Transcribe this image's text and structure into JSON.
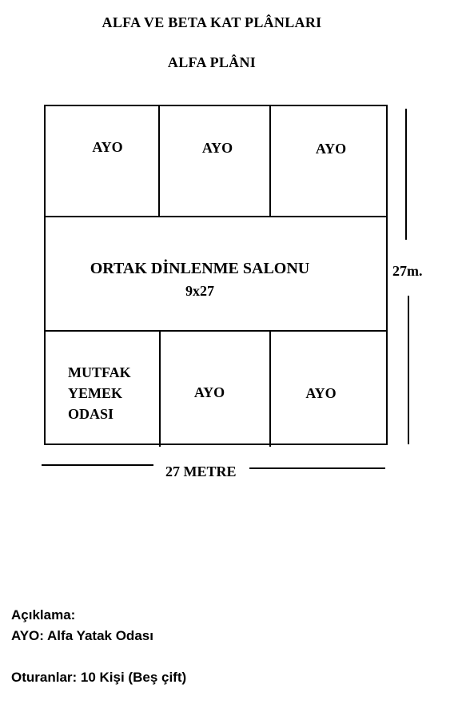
{
  "header": {
    "title": "ALFA VE BETA KAT PLÂNLARI",
    "subtitle": "ALFA PLÂNI"
  },
  "plan": {
    "top_rooms": [
      "AYO",
      "AYO",
      "AYO"
    ],
    "salon": {
      "label": "ORTAK DİNLENME SALONU",
      "dims": "9x27"
    },
    "bottom_rooms": {
      "kitchen_lines": [
        "MUTFAK",
        "YEMEK",
        "ODASI"
      ],
      "room2": "AYO",
      "room3": "AYO"
    },
    "dimension_side": "27m.",
    "dimension_bottom": "27 METRE"
  },
  "legend": {
    "heading": "Açıklama:",
    "ayo_def": "AYO: Alfa Yatak Odası",
    "occupants": "Oturanlar: 10 Kişi (Beş çift)"
  }
}
